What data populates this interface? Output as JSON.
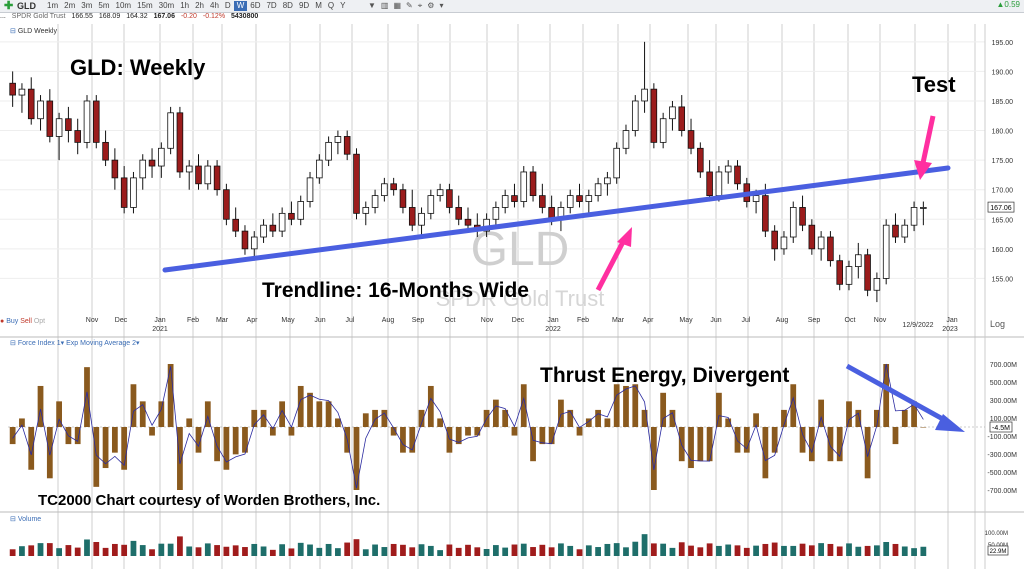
{
  "toolbar": {
    "symbol": "GLD",
    "timeframes": [
      "1m",
      "2m",
      "3m",
      "5m",
      "10m",
      "15m",
      "30m",
      "1h",
      "2h",
      "4h",
      "D",
      "W",
      "6D",
      "7D",
      "8D",
      "9D",
      "M",
      "Q",
      "Y"
    ],
    "selected_timeframe": "W",
    "up_readout": "0.59"
  },
  "quote": {
    "dots": "...",
    "name": "SPDR Gold Trust",
    "open": "166.55",
    "high": "168.09",
    "low": "164.32",
    "close": "167.06",
    "change": "-0.20",
    "change_pct": "-0.12%",
    "volume": "5430800"
  },
  "price_panel": {
    "label": "GLD Weekly",
    "watermark_symbol": "GLD",
    "watermark_name": "SPDR Gold Trust",
    "y_ticks": [
      "195.00",
      "190.00",
      "185.00",
      "180.00",
      "175.00",
      "170.00",
      "165.00",
      "160.00",
      "155.00"
    ],
    "last_price_tag": "167.06",
    "x_labels": [
      "Nov",
      "Dec",
      "Jan",
      "Feb",
      "Mar",
      "Apr",
      "May",
      "Jun",
      "Jul",
      "Aug",
      "Sep",
      "Oct",
      "Nov",
      "Dec",
      "Jan",
      "Feb",
      "Mar",
      "Apr",
      "May",
      "Jun",
      "Jul",
      "Aug",
      "Sep",
      "Oct",
      "Nov",
      "Jan"
    ],
    "year_labels": [
      "2021",
      "2022",
      "2023"
    ],
    "date_marker": "12/9/2022",
    "log_label": "Log"
  },
  "trade_bar": {
    "buy": "Buy",
    "sell": "Sell",
    "opt": "Opt"
  },
  "force_panel": {
    "label": "Force Index 1",
    "ema_label": "Exp Moving Average 2",
    "y_ticks": [
      "700.00M",
      "500.00M",
      "300.00M",
      "100.00M",
      "-100.00M",
      "-300.00M",
      "-500.00M",
      "-700.00M"
    ],
    "current_tag": "-4.5M"
  },
  "volume_panel": {
    "label": "Volume",
    "y_ticks": [
      "100.00M",
      "50.00M"
    ],
    "current_tag": "22.9M"
  },
  "annotations": {
    "title": "GLD:  Weekly",
    "test": "Test",
    "trendline": "Trendline:  16-Months Wide",
    "thrust": "Thrust Energy, Divergent",
    "credit": "TC2000 Chart courtesy of Worden Brothers, Inc."
  },
  "colors": {
    "up_candle": "#ffffff",
    "down_candle": "#9b1c1c",
    "trendline": "#4a5fe0",
    "pink_arrow": "#ff2fa0",
    "blue_arrow": "#4a5fe0",
    "force_bar": "#8a5a1e",
    "ema_line": "#2a2aa0",
    "vol_up": "#1e6e6a",
    "vol_down": "#a01c1c"
  },
  "chart_data": {
    "type": "candlestick",
    "title": "GLD Weekly",
    "ylim": [
      150,
      197
    ],
    "candles": [
      [
        188,
        190,
        184,
        186
      ],
      [
        186,
        188,
        183,
        187
      ],
      [
        187,
        189,
        181,
        182
      ],
      [
        182,
        186,
        180,
        185
      ],
      [
        185,
        187,
        178,
        179
      ],
      [
        179,
        183,
        175,
        182
      ],
      [
        182,
        184,
        178,
        180
      ],
      [
        180,
        182,
        176,
        178
      ],
      [
        178,
        186,
        177,
        185
      ],
      [
        185,
        186,
        177,
        178
      ],
      [
        178,
        180,
        174,
        175
      ],
      [
        175,
        177,
        170,
        172
      ],
      [
        172,
        174,
        166,
        167
      ],
      [
        167,
        173,
        166,
        172
      ],
      [
        172,
        176,
        170,
        175
      ],
      [
        175,
        177,
        172,
        174
      ],
      [
        174,
        178,
        172,
        177
      ],
      [
        177,
        184,
        176,
        183
      ],
      [
        183,
        184,
        172,
        173
      ],
      [
        173,
        175,
        170,
        174
      ],
      [
        174,
        176,
        170,
        171
      ],
      [
        171,
        175,
        170,
        174
      ],
      [
        174,
        175,
        169,
        170
      ],
      [
        170,
        171,
        164,
        165
      ],
      [
        165,
        167,
        162,
        163
      ],
      [
        163,
        164,
        159,
        160
      ],
      [
        160,
        163,
        158,
        162
      ],
      [
        162,
        165,
        161,
        164
      ],
      [
        164,
        166,
        162,
        163
      ],
      [
        163,
        167,
        162,
        166
      ],
      [
        166,
        168,
        164,
        165
      ],
      [
        165,
        169,
        164,
        168
      ],
      [
        168,
        173,
        167,
        172
      ],
      [
        172,
        176,
        171,
        175
      ],
      [
        175,
        179,
        174,
        178
      ],
      [
        178,
        180,
        176,
        179
      ],
      [
        179,
        180,
        175,
        176
      ],
      [
        176,
        177,
        165,
        166
      ],
      [
        166,
        168,
        164,
        167
      ],
      [
        167,
        170,
        166,
        169
      ],
      [
        169,
        172,
        168,
        171
      ],
      [
        171,
        172,
        169,
        170
      ],
      [
        170,
        171,
        166,
        167
      ],
      [
        167,
        170,
        163,
        164
      ],
      [
        164,
        167,
        162,
        166
      ],
      [
        166,
        170,
        165,
        169
      ],
      [
        169,
        171,
        168,
        170
      ],
      [
        170,
        171,
        166,
        167
      ],
      [
        167,
        169,
        164,
        165
      ],
      [
        165,
        167,
        163,
        164
      ],
      [
        164,
        166,
        162,
        163
      ],
      [
        163,
        166,
        162,
        165
      ],
      [
        165,
        168,
        164,
        167
      ],
      [
        167,
        170,
        166,
        169
      ],
      [
        169,
        171,
        167,
        168
      ],
      [
        168,
        174,
        167,
        173
      ],
      [
        173,
        174,
        168,
        169
      ],
      [
        169,
        171,
        166,
        167
      ],
      [
        167,
        169,
        164,
        165
      ],
      [
        165,
        168,
        163,
        167
      ],
      [
        167,
        170,
        166,
        169
      ],
      [
        169,
        171,
        167,
        168
      ],
      [
        168,
        170,
        166,
        169
      ],
      [
        169,
        172,
        168,
        171
      ],
      [
        171,
        173,
        169,
        172
      ],
      [
        172,
        178,
        171,
        177
      ],
      [
        177,
        181,
        176,
        180
      ],
      [
        180,
        186,
        179,
        185
      ],
      [
        185,
        195,
        183,
        187
      ],
      [
        187,
        188,
        177,
        178
      ],
      [
        178,
        183,
        177,
        182
      ],
      [
        182,
        185,
        180,
        184
      ],
      [
        184,
        186,
        179,
        180
      ],
      [
        180,
        182,
        176,
        177
      ],
      [
        177,
        178,
        172,
        173
      ],
      [
        173,
        175,
        168,
        169
      ],
      [
        169,
        174,
        168,
        173
      ],
      [
        173,
        175,
        171,
        174
      ],
      [
        174,
        175,
        170,
        171
      ],
      [
        171,
        172,
        167,
        168
      ],
      [
        168,
        170,
        166,
        169
      ],
      [
        169,
        171,
        162,
        163
      ],
      [
        163,
        164,
        158,
        160
      ],
      [
        160,
        163,
        159,
        162
      ],
      [
        162,
        168,
        161,
        167
      ],
      [
        167,
        169,
        163,
        164
      ],
      [
        164,
        165,
        159,
        160
      ],
      [
        160,
        163,
        158,
        162
      ],
      [
        162,
        163,
        157,
        158
      ],
      [
        158,
        159,
        153,
        154
      ],
      [
        154,
        158,
        153,
        157
      ],
      [
        157,
        161,
        155,
        159
      ],
      [
        159,
        160,
        152,
        153
      ],
      [
        153,
        156,
        151,
        155
      ],
      [
        155,
        165,
        154,
        164
      ],
      [
        164,
        166,
        161,
        162
      ],
      [
        162,
        165,
        161,
        164
      ],
      [
        164,
        168,
        163,
        167
      ],
      [
        167,
        168,
        164,
        167
      ]
    ]
  }
}
